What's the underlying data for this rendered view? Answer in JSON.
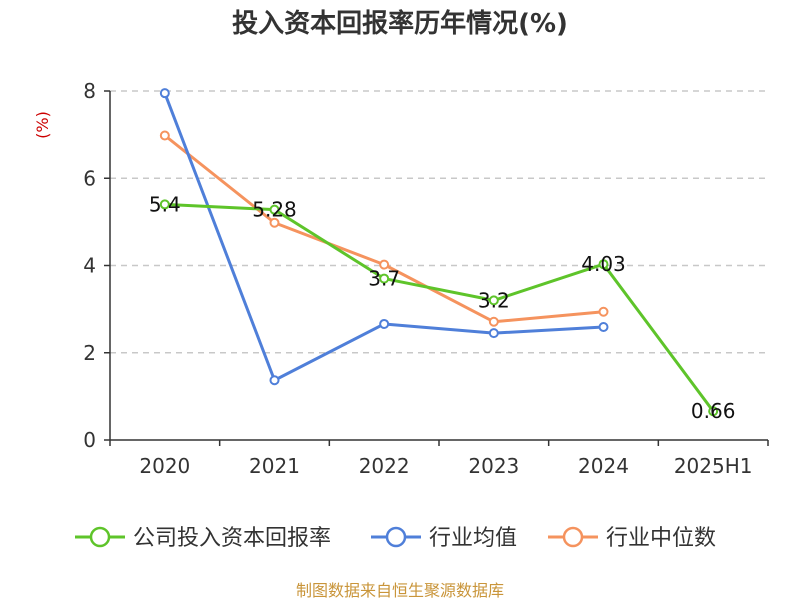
{
  "chart_data": {
    "type": "line",
    "title": "投入资本回报率历年情况(%)",
    "ylabel": "(%)",
    "categories": [
      "2020",
      "2021",
      "2022",
      "2023",
      "2024",
      "2025H1"
    ],
    "ylim": [
      0,
      8
    ],
    "yticks": [
      0,
      2,
      4,
      6,
      8
    ],
    "grid": true,
    "legend_position": "bottom",
    "series": [
      {
        "name": "公司投入资本回报率",
        "color": "#5ec42a",
        "values": [
          5.4,
          5.28,
          3.7,
          3.2,
          4.03,
          0.66
        ],
        "labels": [
          "5.4",
          "5.28",
          "3.7",
          "3.2",
          "4.03",
          "0.66"
        ]
      },
      {
        "name": "行业均值",
        "color": "#4f7fd9",
        "values": [
          7.95,
          1.37,
          2.66,
          2.45,
          2.59,
          null
        ]
      },
      {
        "name": "行业中位数",
        "color": "#f5935e",
        "values": [
          6.98,
          4.98,
          4.02,
          2.71,
          2.94,
          null
        ]
      }
    ]
  },
  "source": "制图数据来自恒生聚源数据库",
  "colors": {
    "ylabel": "#cc0000",
    "source": "#c9953a",
    "grid": "#c8c8c8",
    "axis": "#333333"
  }
}
